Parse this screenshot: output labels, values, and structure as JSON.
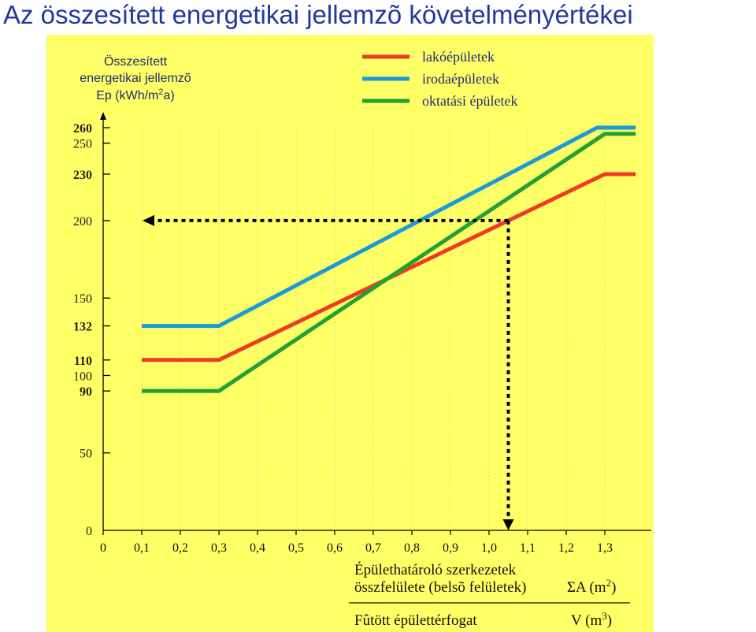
{
  "page_title": "Az összesített energetikai jellemzõ követelményértékei",
  "chart_data": {
    "type": "line",
    "ylabel": [
      "Összesített",
      "energetikai jellemzõ"
    ],
    "ylabel_unit": {
      "base": "Ep (kWh/m",
      "sup": "2",
      "end": "a)"
    },
    "xlabel": [
      "Épülethatároló szerkezetek",
      "összfelülete (belsõ felületek)"
    ],
    "xlabel_unit": {
      "base": "ΣA (m",
      "sup": "2",
      "end": ")"
    },
    "xlabel_denominator": "Fûtött épülettérfogat",
    "xlabel_denominator_unit": {
      "base": "V  (m",
      "sup": "3",
      "end": ")"
    },
    "x_ticks": [
      "0",
      "0,1",
      "0,2",
      "0,3",
      "0,4",
      "0,5",
      "0,6",
      "0,7",
      "0,8",
      "0,9",
      "1,0",
      "1,1",
      "1,2",
      "1,3"
    ],
    "x_tick_values": [
      0,
      0.1,
      0.2,
      0.3,
      0.4,
      0.5,
      0.6,
      0.7,
      0.8,
      0.9,
      1.0,
      1.1,
      1.2,
      1.3
    ],
    "y_ticks": [
      {
        "value": 260,
        "label": "260",
        "bold": true
      },
      {
        "value": 250,
        "label": "250",
        "bold": false
      },
      {
        "value": 230,
        "label": "230",
        "bold": true
      },
      {
        "value": 200,
        "label": "200",
        "bold": false
      },
      {
        "value": 150,
        "label": "150",
        "bold": false
      },
      {
        "value": 132,
        "label": "132",
        "bold": true
      },
      {
        "value": 110,
        "label": "110",
        "bold": true
      },
      {
        "value": 100,
        "label": "100",
        "bold": false
      },
      {
        "value": 90,
        "label": "90",
        "bold": true
      },
      {
        "value": 50,
        "label": "50",
        "bold": false
      },
      {
        "value": 0,
        "label": "0",
        "bold": false
      }
    ],
    "xlim": [
      0,
      1.4
    ],
    "ylim": [
      0,
      260
    ],
    "grid": true,
    "legend_position": "top-right",
    "series": [
      {
        "name": "lakóépületek",
        "color": "#ef3b24",
        "x": [
          0.1,
          0.3,
          1.3,
          1.38
        ],
        "y": [
          110,
          110,
          230,
          230
        ]
      },
      {
        "name": "irodaépületek",
        "color": "#1a9ad6",
        "x": [
          0.1,
          0.3,
          1.28,
          1.38
        ],
        "y": [
          132,
          132,
          260,
          260
        ]
      },
      {
        "name": "oktatási épületek",
        "color": "#22a032",
        "x": [
          0.1,
          0.3,
          1.3,
          1.38
        ],
        "y": [
          90,
          90,
          256,
          256
        ]
      }
    ],
    "example_marker": {
      "x": 1.05,
      "y": 200,
      "color": "#000000"
    }
  }
}
